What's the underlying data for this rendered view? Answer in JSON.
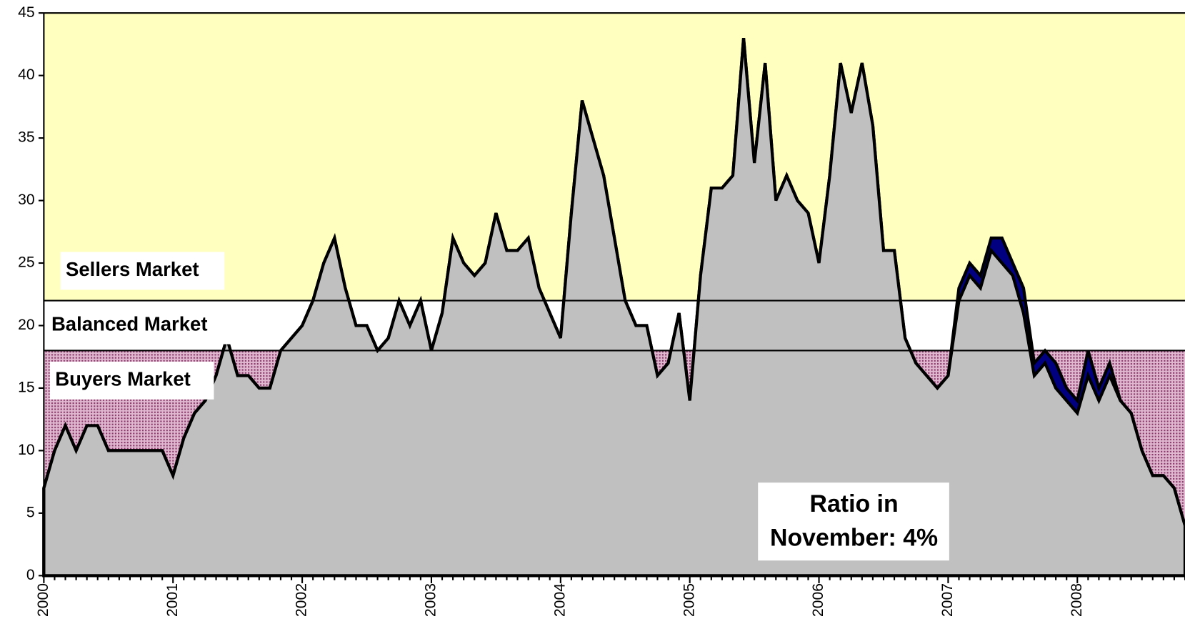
{
  "chart_data": {
    "type": "area",
    "categories": [
      "2000",
      null,
      null,
      null,
      null,
      null,
      null,
      null,
      null,
      null,
      null,
      null,
      "2001",
      null,
      null,
      null,
      null,
      null,
      null,
      null,
      null,
      null,
      null,
      null,
      "2002",
      null,
      null,
      null,
      null,
      null,
      null,
      null,
      null,
      null,
      null,
      null,
      "2003",
      null,
      null,
      null,
      null,
      null,
      null,
      null,
      null,
      null,
      null,
      null,
      "2004",
      null,
      null,
      null,
      null,
      null,
      null,
      null,
      null,
      null,
      null,
      null,
      "2005",
      null,
      null,
      null,
      null,
      null,
      null,
      null,
      null,
      null,
      null,
      null,
      "2006",
      null,
      null,
      null,
      null,
      null,
      null,
      null,
      null,
      null,
      null,
      null,
      "2007",
      null,
      null,
      null,
      null,
      null,
      null,
      null,
      null,
      null,
      null,
      null,
      "2008",
      null,
      null,
      null,
      null,
      null,
      null,
      null,
      null,
      null,
      null
    ],
    "series": [
      {
        "color": "#000080",
        "values": [
          7,
          10,
          12,
          10,
          12,
          12,
          10,
          10,
          10,
          10,
          10,
          10,
          8,
          11,
          13,
          14,
          16,
          19,
          16,
          16,
          15,
          15,
          18,
          19,
          20,
          22,
          25,
          27,
          23,
          20,
          20,
          18,
          19,
          22,
          20,
          22,
          18,
          21,
          27,
          25,
          24,
          25,
          29,
          26,
          26,
          27,
          23,
          21,
          19,
          29,
          38,
          35,
          32,
          27,
          22,
          20,
          20,
          16,
          17,
          21,
          14,
          24,
          31,
          31,
          32,
          43,
          33,
          41,
          30,
          32,
          30,
          29,
          25,
          32,
          41,
          37,
          41,
          36,
          26,
          26,
          19,
          17,
          16,
          15,
          16,
          23,
          25,
          24,
          27,
          27,
          25,
          23,
          17,
          18,
          17,
          15,
          14,
          18,
          15,
          17,
          14,
          13,
          10,
          8,
          8,
          7,
          4
        ]
      },
      {
        "color": "#c0c0c0",
        "values": [
          7,
          10,
          12,
          10,
          12,
          12,
          10,
          10,
          10,
          10,
          10,
          10,
          8,
          11,
          13,
          14,
          16,
          19,
          16,
          16,
          15,
          15,
          18,
          19,
          20,
          22,
          25,
          27,
          23,
          20,
          20,
          18,
          19,
          22,
          20,
          22,
          18,
          21,
          27,
          25,
          24,
          25,
          29,
          26,
          26,
          27,
          23,
          21,
          19,
          29,
          38,
          35,
          32,
          27,
          22,
          20,
          20,
          16,
          17,
          21,
          14,
          24,
          31,
          31,
          32,
          43,
          33,
          41,
          30,
          32,
          30,
          29,
          25,
          32,
          41,
          37,
          41,
          36,
          26,
          26,
          19,
          17,
          16,
          15,
          16,
          22,
          24,
          23,
          26,
          25,
          24,
          21,
          16,
          17,
          15,
          14,
          13,
          16,
          14,
          16,
          14,
          13,
          10,
          8,
          8,
          7,
          4
        ]
      }
    ],
    "zones": [
      {
        "label": "Sellers Market",
        "from": 22,
        "to": 45,
        "color": "#ffffc0"
      },
      {
        "label": "Balanced Market",
        "from": 18,
        "to": 22,
        "color": "#ffffff"
      },
      {
        "label": "Buyers Market",
        "from": 0,
        "to": 18,
        "color": "#b86a98"
      }
    ],
    "annotation": [
      "Ratio in",
      "November: 4%"
    ],
    "ylim": [
      0,
      45
    ],
    "yticks": [
      0,
      5,
      10,
      15,
      20,
      25,
      30,
      35,
      40,
      45
    ]
  }
}
